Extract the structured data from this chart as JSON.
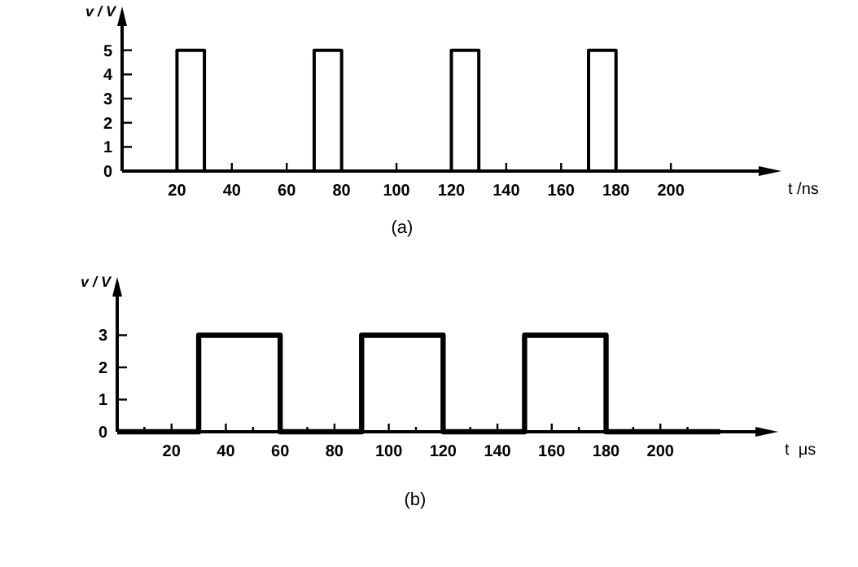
{
  "chart_data": [
    {
      "type": "step",
      "xlabel": "t /ns",
      "ylabel": "v / V",
      "x": [
        0,
        20,
        30,
        70,
        80,
        120,
        130,
        170,
        180,
        220
      ],
      "values": [
        0,
        5,
        0,
        5,
        0,
        5,
        0,
        5,
        0,
        0
      ],
      "color": "#000000",
      "xlim": [
        0,
        232
      ],
      "ylim": [
        0,
        6
      ],
      "xticks": [
        20,
        40,
        60,
        80,
        100,
        120,
        140,
        160,
        180,
        200
      ],
      "yticks": [
        0,
        1,
        2,
        3,
        4,
        5
      ],
      "grid": false,
      "line_style": "solid",
      "annotations": [
        "(a)"
      ]
    },
    {
      "type": "step",
      "xlabel": "t  μs",
      "ylabel": "v / V",
      "x": [
        0,
        30,
        60,
        90,
        120,
        150,
        180,
        222
      ],
      "values": [
        0,
        3,
        0,
        3,
        0,
        3,
        0,
        0
      ],
      "color": "#000000",
      "xlim": [
        0,
        235
      ],
      "ylim": [
        0,
        4.2
      ],
      "xticks": [
        {
          "value": 10,
          "label": null
        },
        20,
        {
          "value": 30,
          "label": null
        },
        40,
        {
          "value": 50,
          "label": null
        },
        60,
        {
          "value": 70,
          "label": null
        },
        80,
        {
          "value": 90,
          "label": null
        },
        100,
        {
          "value": 110,
          "label": null
        },
        120,
        {
          "value": 130,
          "label": null
        },
        140,
        {
          "value": 150,
          "label": null
        },
        160,
        {
          "value": 170,
          "label": null
        },
        180,
        {
          "value": 190,
          "label": null
        },
        200,
        {
          "value": 210,
          "label": null
        }
      ],
      "yticks": [
        0,
        1,
        2,
        3
      ],
      "grid": false,
      "line_style": "solid",
      "annotations": [
        "(b)"
      ]
    }
  ]
}
